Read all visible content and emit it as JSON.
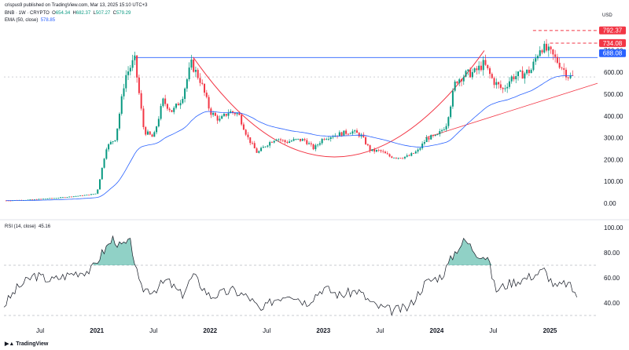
{
  "header": {
    "published": "crispus9 published on TradingView.com, Mar 13, 2025 15:10 UTC+3",
    "symbol": "BNB · 1W · CRYPTO",
    "o_label": "O",
    "o": "654.34",
    "h_label": "H",
    "h": "682.37",
    "l_label": "L",
    "l": "507.27",
    "c_label": "C",
    "c": "579.29",
    "ema_label": "EMA (50, close)",
    "ema": "578.85",
    "currency": "USD"
  },
  "rsi": {
    "label": "RSI (14, close)",
    "value": "45.16"
  },
  "footer": {
    "brand": "TradingView"
  },
  "colors": {
    "up": "#089981",
    "down": "#f23645",
    "ema": "#2962ff",
    "curve": "#f23645",
    "resistance": "#2962ff",
    "rsi": "#131722",
    "rsi_fill": "#089981"
  },
  "chart_data": [
    {
      "type": "candlestick",
      "title": "",
      "ylabel": "USD",
      "yticks": [
        "0.00",
        "100.00",
        "200.00",
        "300.00",
        "400.00",
        "500.00",
        "600.00",
        "700.00"
      ],
      "ylim": [
        -20,
        820
      ],
      "xticks": [
        "Jul",
        "2021",
        "Jul",
        "2022",
        "Jul",
        "2023",
        "Jul",
        "2024",
        "Jul",
        "2025"
      ],
      "price_badges": [
        {
          "value": "792.37",
          "color": "#f23645"
        },
        {
          "value": "734.08",
          "color": "#f23645"
        },
        {
          "value": "688.08",
          "color": "#2962ff"
        }
      ],
      "resistance_level": 668,
      "approx_close_points": [
        [
          "2020-03",
          12
        ],
        [
          "2020-06",
          16
        ],
        [
          "2020-09",
          25
        ],
        [
          "2020-12",
          38
        ],
        [
          "2021-01",
          45
        ],
        [
          "2021-02",
          255
        ],
        [
          "2021-03",
          300
        ],
        [
          "2021-04",
          580
        ],
        [
          "2021-05",
          660
        ],
        [
          "2021-06",
          330
        ],
        [
          "2021-07",
          300
        ],
        [
          "2021-08",
          470
        ],
        [
          "2021-09",
          420
        ],
        [
          "2021-10",
          480
        ],
        [
          "2021-11",
          640
        ],
        [
          "2021-12",
          560
        ],
        [
          "2022-01",
          420
        ],
        [
          "2022-02",
          380
        ],
        [
          "2022-03",
          420
        ],
        [
          "2022-04",
          410
        ],
        [
          "2022-05",
          300
        ],
        [
          "2022-06",
          230
        ],
        [
          "2022-07",
          270
        ],
        [
          "2022-08",
          300
        ],
        [
          "2022-09",
          280
        ],
        [
          "2022-10",
          290
        ],
        [
          "2022-11",
          290
        ],
        [
          "2022-12",
          250
        ],
        [
          "2023-01",
          300
        ],
        [
          "2023-02",
          310
        ],
        [
          "2023-03",
          320
        ],
        [
          "2023-04",
          330
        ],
        [
          "2023-05",
          310
        ],
        [
          "2023-06",
          240
        ],
        [
          "2023-07",
          240
        ],
        [
          "2023-08",
          215
        ],
        [
          "2023-09",
          210
        ],
        [
          "2023-10",
          215
        ],
        [
          "2023-11",
          240
        ],
        [
          "2023-12",
          300
        ],
        [
          "2024-01",
          305
        ],
        [
          "2024-02",
          360
        ],
        [
          "2024-03",
          560
        ],
        [
          "2024-04",
          590
        ],
        [
          "2024-05",
          600
        ],
        [
          "2024-06",
          640
        ],
        [
          "2024-07",
          560
        ],
        [
          "2024-08",
          520
        ],
        [
          "2024-09",
          580
        ],
        [
          "2024-10",
          590
        ],
        [
          "2024-11",
          610
        ],
        [
          "2024-12",
          720
        ],
        [
          "2025-01",
          690
        ],
        [
          "2025-02",
          640
        ],
        [
          "2025-03",
          580
        ]
      ]
    },
    {
      "type": "line",
      "title": "",
      "yticks": [
        "40.00",
        "60.00",
        "80.00",
        "100.00"
      ],
      "ylim": [
        30,
        105
      ],
      "levels": [
        70,
        30
      ]
    }
  ]
}
